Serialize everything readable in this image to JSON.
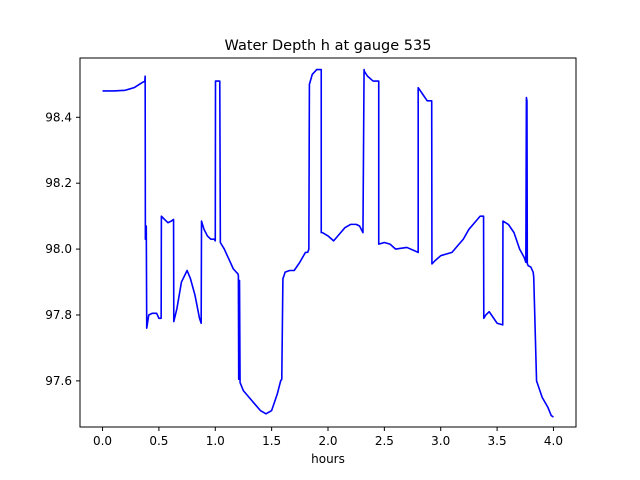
{
  "chart_data": {
    "type": "line",
    "title": "Water Depth h at gauge 535",
    "xlabel": "hours",
    "ylabel": "",
    "xlim": [
      -0.2,
      4.2
    ],
    "ylim": [
      97.46,
      98.58
    ],
    "xticks": [
      0.0,
      0.5,
      1.0,
      1.5,
      2.0,
      2.5,
      3.0,
      3.5,
      4.0
    ],
    "xtick_labels": [
      "0.0",
      "0.5",
      "1.0",
      "1.5",
      "2.0",
      "2.5",
      "3.0",
      "3.5",
      "4.0"
    ],
    "yticks": [
      97.6,
      97.8,
      98.0,
      98.2,
      98.4
    ],
    "ytick_labels": [
      "97.6",
      "97.8",
      "98.0",
      "98.2",
      "98.4"
    ],
    "grid": false,
    "legend": false,
    "series": [
      {
        "color": "#0000ff",
        "x": [
          0.0,
          0.1,
          0.2,
          0.28,
          0.35,
          0.375,
          0.378,
          0.38,
          0.385,
          0.388,
          0.392,
          0.41,
          0.44,
          0.48,
          0.5,
          0.52,
          0.522,
          0.55,
          0.58,
          0.61,
          0.63,
          0.632,
          0.66,
          0.7,
          0.75,
          0.78,
          0.82,
          0.86,
          0.875,
          0.878,
          0.9,
          0.93,
          0.96,
          0.99,
          1.0,
          1.002,
          1.04,
          1.045,
          1.08,
          1.12,
          1.16,
          1.2,
          1.205,
          1.208,
          1.212,
          1.215,
          1.22,
          1.25,
          1.3,
          1.35,
          1.4,
          1.45,
          1.5,
          1.55,
          1.58,
          1.59,
          1.6,
          1.62,
          1.66,
          1.7,
          1.75,
          1.8,
          1.82,
          1.83,
          1.835,
          1.86,
          1.9,
          1.94,
          1.94,
          1.95,
          2.0,
          2.05,
          2.1,
          2.15,
          2.2,
          2.25,
          2.28,
          2.31,
          2.32,
          2.322,
          2.35,
          2.4,
          2.45,
          2.45,
          2.5,
          2.55,
          2.6,
          2.7,
          2.8,
          2.8,
          2.82,
          2.84,
          2.88,
          2.92,
          2.922,
          2.95,
          3.0,
          3.05,
          3.1,
          3.15,
          3.2,
          3.25,
          3.3,
          3.35,
          3.38,
          3.382,
          3.4,
          3.43,
          3.46,
          3.5,
          3.55,
          3.552,
          3.6,
          3.65,
          3.7,
          3.74,
          3.755,
          3.76,
          3.765,
          3.768,
          3.77,
          3.775,
          3.8,
          3.82,
          3.825,
          3.85,
          3.9,
          3.95,
          3.98,
          4.0
        ],
        "y": [
          98.48,
          98.48,
          98.482,
          98.49,
          98.505,
          98.51,
          98.525,
          98.03,
          98.07,
          98.07,
          97.76,
          97.8,
          97.805,
          97.805,
          97.79,
          97.79,
          98.1,
          98.09,
          98.08,
          98.085,
          98.09,
          97.78,
          97.82,
          97.9,
          97.935,
          97.91,
          97.86,
          97.79,
          97.775,
          98.085,
          98.06,
          98.04,
          98.03,
          98.03,
          98.025,
          98.51,
          98.51,
          98.02,
          98.0,
          97.97,
          97.94,
          97.925,
          97.92,
          97.605,
          97.61,
          97.905,
          97.595,
          97.57,
          97.55,
          97.53,
          97.51,
          97.5,
          97.51,
          97.56,
          97.6,
          97.605,
          97.91,
          97.93,
          97.935,
          97.935,
          97.96,
          97.99,
          97.99,
          98.0,
          98.5,
          98.53,
          98.545,
          98.545,
          98.05,
          98.05,
          98.04,
          98.025,
          98.045,
          98.065,
          98.075,
          98.075,
          98.07,
          98.05,
          98.545,
          98.54,
          98.525,
          98.51,
          98.51,
          98.015,
          98.02,
          98.015,
          98.0,
          98.005,
          97.99,
          98.49,
          98.48,
          98.47,
          98.45,
          98.45,
          97.955,
          97.965,
          97.98,
          97.985,
          97.99,
          98.01,
          98.03,
          98.06,
          98.08,
          98.1,
          98.1,
          97.79,
          97.8,
          97.81,
          97.795,
          97.775,
          97.77,
          98.085,
          98.075,
          98.05,
          98.0,
          97.975,
          97.96,
          98.46,
          98.45,
          97.955,
          97.955,
          97.95,
          97.945,
          97.93,
          97.915,
          97.6,
          97.55,
          97.52,
          97.495,
          97.49
        ]
      }
    ]
  }
}
